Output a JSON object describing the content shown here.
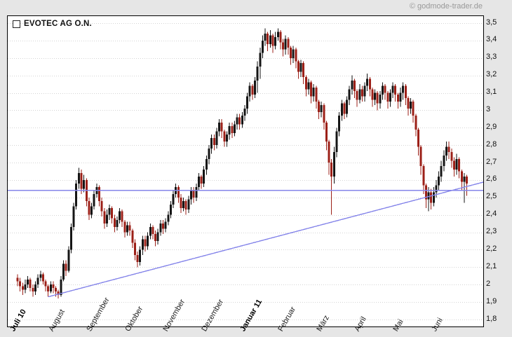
{
  "watermark": "© godmode-trader.de",
  "legend": {
    "label": "EVOTEC AG O.N."
  },
  "chart_data": {
    "type": "candlestick",
    "title": "EVOTEC AG O.N.",
    "ylim": [
      1.8,
      3.5
    ],
    "grid": "horizontal-dotted",
    "candle_format": "open,high,low,close",
    "colors": {
      "up": "#151515",
      "down": "#9c2018",
      "line": "#8585ea",
      "grid": "#d4d4d4",
      "plot_bg": "#ffffff",
      "page_bg": "#e6e6e6",
      "border": "#000000",
      "watermark": "#999999"
    },
    "y_ticks": [
      {
        "label": "3,5",
        "value": 3.5
      },
      {
        "label": "3,4",
        "value": 3.4
      },
      {
        "label": "3,3",
        "value": 3.3
      },
      {
        "label": "3,2",
        "value": 3.2
      },
      {
        "label": "3,1",
        "value": 3.1
      },
      {
        "label": "3",
        "value": 3.0
      },
      {
        "label": "2,9",
        "value": 2.9
      },
      {
        "label": "2,8",
        "value": 2.8
      },
      {
        "label": "2,7",
        "value": 2.7
      },
      {
        "label": "2,6",
        "value": 2.6
      },
      {
        "label": "2,5",
        "value": 2.5
      },
      {
        "label": "2,4",
        "value": 2.4
      },
      {
        "label": "2,3",
        "value": 2.3
      },
      {
        "label": "2,2",
        "value": 2.2
      },
      {
        "label": "2,1",
        "value": 2.1
      },
      {
        "label": "2",
        "value": 2.0
      },
      {
        "label": "1,9",
        "value": 1.9
      },
      {
        "label": "1,8",
        "value": 1.8
      }
    ],
    "x_ticks": [
      {
        "label": "Juli 10",
        "candle": 0,
        "bold": true
      },
      {
        "label": "August",
        "candle": 15,
        "bold": false
      },
      {
        "label": "September",
        "candle": 30,
        "bold": false
      },
      {
        "label": "Oktober",
        "candle": 45,
        "bold": false
      },
      {
        "label": "November",
        "candle": 60,
        "bold": false
      },
      {
        "label": "Dezember",
        "candle": 75,
        "bold": false
      },
      {
        "label": "Januar 11",
        "candle": 90,
        "bold": true
      },
      {
        "label": "Februar",
        "candle": 105,
        "bold": false
      },
      {
        "label": "März",
        "candle": 120,
        "bold": false
      },
      {
        "label": "April",
        "candle": 135,
        "bold": false
      },
      {
        "label": "Mai",
        "candle": 150,
        "bold": false
      },
      {
        "label": "Juni",
        "candle": 165,
        "bold": false
      }
    ],
    "support_line": {
      "type": "horizontal",
      "price": 2.54
    },
    "trendline": {
      "type": "ascending",
      "from_candle": 12,
      "from_price": 1.93,
      "to_candle": 183,
      "to_price": 2.59
    },
    "candles": [
      [
        2.04,
        2.06,
        1.99,
        2.02
      ],
      [
        2.02,
        2.04,
        1.96,
        1.99
      ],
      [
        1.99,
        2.01,
        1.94,
        1.97
      ],
      [
        1.97,
        2.03,
        1.95,
        2.0
      ],
      [
        2.0,
        2.05,
        1.98,
        2.03
      ],
      [
        2.03,
        2.04,
        1.96,
        1.98
      ],
      [
        1.98,
        2.0,
        1.93,
        1.96
      ],
      [
        1.96,
        2.02,
        1.94,
        2.0
      ],
      [
        2.0,
        2.06,
        1.98,
        2.04
      ],
      [
        2.04,
        2.08,
        2.02,
        2.06
      ],
      [
        2.06,
        2.07,
        2.0,
        2.02
      ],
      [
        2.02,
        2.03,
        1.96,
        1.99
      ],
      [
        1.99,
        2.0,
        1.93,
        1.96
      ],
      [
        1.96,
        2.02,
        1.95,
        2.0
      ],
      [
        2.0,
        2.02,
        1.95,
        1.98
      ],
      [
        1.98,
        1.99,
        1.93,
        1.96
      ],
      [
        1.96,
        1.97,
        1.92,
        1.94
      ],
      [
        1.94,
        2.05,
        1.93,
        2.03
      ],
      [
        2.03,
        2.14,
        2.02,
        2.12
      ],
      [
        2.12,
        2.14,
        2.05,
        2.08
      ],
      [
        2.08,
        2.22,
        2.07,
        2.2
      ],
      [
        2.2,
        2.35,
        2.18,
        2.33
      ],
      [
        2.33,
        2.47,
        2.31,
        2.45
      ],
      [
        2.45,
        2.6,
        2.43,
        2.58
      ],
      [
        2.58,
        2.67,
        2.55,
        2.64
      ],
      [
        2.64,
        2.66,
        2.52,
        2.55
      ],
      [
        2.55,
        2.63,
        2.53,
        2.6
      ],
      [
        2.6,
        2.61,
        2.45,
        2.48
      ],
      [
        2.48,
        2.5,
        2.37,
        2.4
      ],
      [
        2.4,
        2.47,
        2.38,
        2.45
      ],
      [
        2.45,
        2.54,
        2.43,
        2.52
      ],
      [
        2.52,
        2.58,
        2.5,
        2.56
      ],
      [
        2.56,
        2.57,
        2.45,
        2.48
      ],
      [
        2.48,
        2.5,
        2.39,
        2.42
      ],
      [
        2.42,
        2.44,
        2.32,
        2.35
      ],
      [
        2.35,
        2.43,
        2.33,
        2.4
      ],
      [
        2.4,
        2.46,
        2.37,
        2.44
      ],
      [
        2.44,
        2.45,
        2.35,
        2.38
      ],
      [
        2.38,
        2.4,
        2.3,
        2.33
      ],
      [
        2.33,
        2.39,
        2.31,
        2.37
      ],
      [
        2.37,
        2.44,
        2.35,
        2.42
      ],
      [
        2.42,
        2.43,
        2.33,
        2.36
      ],
      [
        2.36,
        2.37,
        2.27,
        2.3
      ],
      [
        2.3,
        2.36,
        2.28,
        2.34
      ],
      [
        2.34,
        2.36,
        2.28,
        2.31
      ],
      [
        2.31,
        2.32,
        2.21,
        2.24
      ],
      [
        2.24,
        2.26,
        2.14,
        2.17
      ],
      [
        2.17,
        2.19,
        2.1,
        2.13
      ],
      [
        2.13,
        2.22,
        2.11,
        2.2
      ],
      [
        2.2,
        2.28,
        2.17,
        2.26
      ],
      [
        2.26,
        2.28,
        2.19,
        2.22
      ],
      [
        2.22,
        2.3,
        2.2,
        2.28
      ],
      [
        2.28,
        2.35,
        2.26,
        2.33
      ],
      [
        2.33,
        2.34,
        2.26,
        2.29
      ],
      [
        2.29,
        2.31,
        2.22,
        2.25
      ],
      [
        2.25,
        2.32,
        2.23,
        2.3
      ],
      [
        2.3,
        2.37,
        2.28,
        2.35
      ],
      [
        2.35,
        2.37,
        2.29,
        2.32
      ],
      [
        2.32,
        2.38,
        2.3,
        2.36
      ],
      [
        2.36,
        2.42,
        2.34,
        2.4
      ],
      [
        2.4,
        2.48,
        2.38,
        2.46
      ],
      [
        2.46,
        2.54,
        2.44,
        2.52
      ],
      [
        2.52,
        2.58,
        2.5,
        2.56
      ],
      [
        2.56,
        2.57,
        2.47,
        2.5
      ],
      [
        2.5,
        2.52,
        2.41,
        2.44
      ],
      [
        2.44,
        2.5,
        2.42,
        2.48
      ],
      [
        2.48,
        2.49,
        2.4,
        2.43
      ],
      [
        2.43,
        2.51,
        2.41,
        2.49
      ],
      [
        2.49,
        2.56,
        2.46,
        2.54
      ],
      [
        2.54,
        2.56,
        2.47,
        2.5
      ],
      [
        2.5,
        2.58,
        2.48,
        2.56
      ],
      [
        2.56,
        2.64,
        2.54,
        2.62
      ],
      [
        2.62,
        2.63,
        2.55,
        2.58
      ],
      [
        2.58,
        2.68,
        2.56,
        2.66
      ],
      [
        2.66,
        2.74,
        2.63,
        2.72
      ],
      [
        2.72,
        2.8,
        2.69,
        2.78
      ],
      [
        2.78,
        2.86,
        2.75,
        2.84
      ],
      [
        2.84,
        2.86,
        2.77,
        2.8
      ],
      [
        2.8,
        2.9,
        2.78,
        2.88
      ],
      [
        2.88,
        2.95,
        2.85,
        2.93
      ],
      [
        2.93,
        2.95,
        2.84,
        2.88
      ],
      [
        2.88,
        2.89,
        2.79,
        2.82
      ],
      [
        2.82,
        2.88,
        2.79,
        2.86
      ],
      [
        2.86,
        2.93,
        2.83,
        2.91
      ],
      [
        2.91,
        2.93,
        2.84,
        2.87
      ],
      [
        2.87,
        2.94,
        2.85,
        2.92
      ],
      [
        2.92,
        2.98,
        2.89,
        2.96
      ],
      [
        2.96,
        2.98,
        2.89,
        2.92
      ],
      [
        2.92,
        2.99,
        2.9,
        2.97
      ],
      [
        2.97,
        3.03,
        2.94,
        3.01
      ],
      [
        3.01,
        3.1,
        2.98,
        3.08
      ],
      [
        3.08,
        3.16,
        3.05,
        3.14
      ],
      [
        3.14,
        3.15,
        3.06,
        3.09
      ],
      [
        3.09,
        3.19,
        3.07,
        3.17
      ],
      [
        3.17,
        3.28,
        3.1,
        3.25
      ],
      [
        3.25,
        3.36,
        3.18,
        3.33
      ],
      [
        3.33,
        3.43,
        3.3,
        3.4
      ],
      [
        3.4,
        3.47,
        3.37,
        3.44
      ],
      [
        3.44,
        3.45,
        3.34,
        3.38
      ],
      [
        3.38,
        3.46,
        3.36,
        3.43
      ],
      [
        3.43,
        3.44,
        3.33,
        3.37
      ],
      [
        3.37,
        3.45,
        3.35,
        3.42
      ],
      [
        3.42,
        3.47,
        3.4,
        3.45
      ],
      [
        3.45,
        3.46,
        3.35,
        3.39
      ],
      [
        3.39,
        3.41,
        3.31,
        3.35
      ],
      [
        3.35,
        3.43,
        3.32,
        3.41
      ],
      [
        3.41,
        3.42,
        3.32,
        3.36
      ],
      [
        3.36,
        3.37,
        3.26,
        3.3
      ],
      [
        3.3,
        3.37,
        3.27,
        3.35
      ],
      [
        3.35,
        3.36,
        3.24,
        3.28
      ],
      [
        3.28,
        3.29,
        3.18,
        3.22
      ],
      [
        3.22,
        3.29,
        3.19,
        3.27
      ],
      [
        3.27,
        3.28,
        3.15,
        3.19
      ],
      [
        3.19,
        3.2,
        3.08,
        3.12
      ],
      [
        3.12,
        3.18,
        3.09,
        3.16
      ],
      [
        3.16,
        3.17,
        3.04,
        3.08
      ],
      [
        3.08,
        3.15,
        3.05,
        3.13
      ],
      [
        3.13,
        3.14,
        3.01,
        3.05
      ],
      [
        3.05,
        3.06,
        2.95,
        2.99
      ],
      [
        2.99,
        3.05,
        2.96,
        3.03
      ],
      [
        3.03,
        3.04,
        2.89,
        2.93
      ],
      [
        2.93,
        2.94,
        2.77,
        2.82
      ],
      [
        2.82,
        2.83,
        2.63,
        2.7
      ],
      [
        2.7,
        2.72,
        2.4,
        2.62
      ],
      [
        2.62,
        2.79,
        2.58,
        2.76
      ],
      [
        2.76,
        2.9,
        2.73,
        2.88
      ],
      [
        2.88,
        2.99,
        2.85,
        2.97
      ],
      [
        2.97,
        3.06,
        2.94,
        3.04
      ],
      [
        3.04,
        3.05,
        2.95,
        2.98
      ],
      [
        2.98,
        3.08,
        2.96,
        3.06
      ],
      [
        3.06,
        3.14,
        3.03,
        3.12
      ],
      [
        3.12,
        3.2,
        3.09,
        3.17
      ],
      [
        3.17,
        3.18,
        3.07,
        3.11
      ],
      [
        3.11,
        3.12,
        3.02,
        3.06
      ],
      [
        3.06,
        3.15,
        3.04,
        3.12
      ],
      [
        3.12,
        3.14,
        3.05,
        3.08
      ],
      [
        3.08,
        3.16,
        3.05,
        3.14
      ],
      [
        3.14,
        3.21,
        3.11,
        3.18
      ],
      [
        3.18,
        3.19,
        3.08,
        3.12
      ],
      [
        3.12,
        3.13,
        3.02,
        3.06
      ],
      [
        3.06,
        3.12,
        3.03,
        3.1
      ],
      [
        3.1,
        3.11,
        3.0,
        3.04
      ],
      [
        3.04,
        3.11,
        3.01,
        3.09
      ],
      [
        3.09,
        3.16,
        3.06,
        3.14
      ],
      [
        3.14,
        3.15,
        3.06,
        3.1
      ],
      [
        3.1,
        3.11,
        3.01,
        3.05
      ],
      [
        3.05,
        3.12,
        3.02,
        3.1
      ],
      [
        3.1,
        3.16,
        3.07,
        3.14
      ],
      [
        3.14,
        3.15,
        3.05,
        3.09
      ],
      [
        3.09,
        3.1,
        3.01,
        3.05
      ],
      [
        3.05,
        3.13,
        3.02,
        3.1
      ],
      [
        3.1,
        3.16,
        3.06,
        3.14
      ],
      [
        3.14,
        3.15,
        3.03,
        3.07
      ],
      [
        3.07,
        3.08,
        2.97,
        3.01
      ],
      [
        3.01,
        3.07,
        2.98,
        3.05
      ],
      [
        3.05,
        3.06,
        2.93,
        2.97
      ],
      [
        2.97,
        2.98,
        2.85,
        2.89
      ],
      [
        2.89,
        2.9,
        2.74,
        2.79
      ],
      [
        2.79,
        2.8,
        2.63,
        2.68
      ],
      [
        2.68,
        2.69,
        2.52,
        2.57
      ],
      [
        2.57,
        2.58,
        2.44,
        2.49
      ],
      [
        2.49,
        2.56,
        2.42,
        2.53
      ],
      [
        2.53,
        2.55,
        2.43,
        2.47
      ],
      [
        2.47,
        2.56,
        2.45,
        2.53
      ],
      [
        2.53,
        2.6,
        2.5,
        2.57
      ],
      [
        2.57,
        2.65,
        2.54,
        2.62
      ],
      [
        2.62,
        2.71,
        2.59,
        2.68
      ],
      [
        2.68,
        2.77,
        2.65,
        2.74
      ],
      [
        2.74,
        2.82,
        2.71,
        2.79
      ],
      [
        2.79,
        2.82,
        2.72,
        2.76
      ],
      [
        2.76,
        2.78,
        2.67,
        2.71
      ],
      [
        2.71,
        2.73,
        2.62,
        2.66
      ],
      [
        2.66,
        2.75,
        2.63,
        2.72
      ],
      [
        2.72,
        2.73,
        2.61,
        2.65
      ],
      [
        2.65,
        2.66,
        2.54,
        2.59
      ],
      [
        2.59,
        2.64,
        2.47,
        2.62
      ],
      [
        2.62,
        2.63,
        2.51,
        2.58
      ]
    ]
  }
}
